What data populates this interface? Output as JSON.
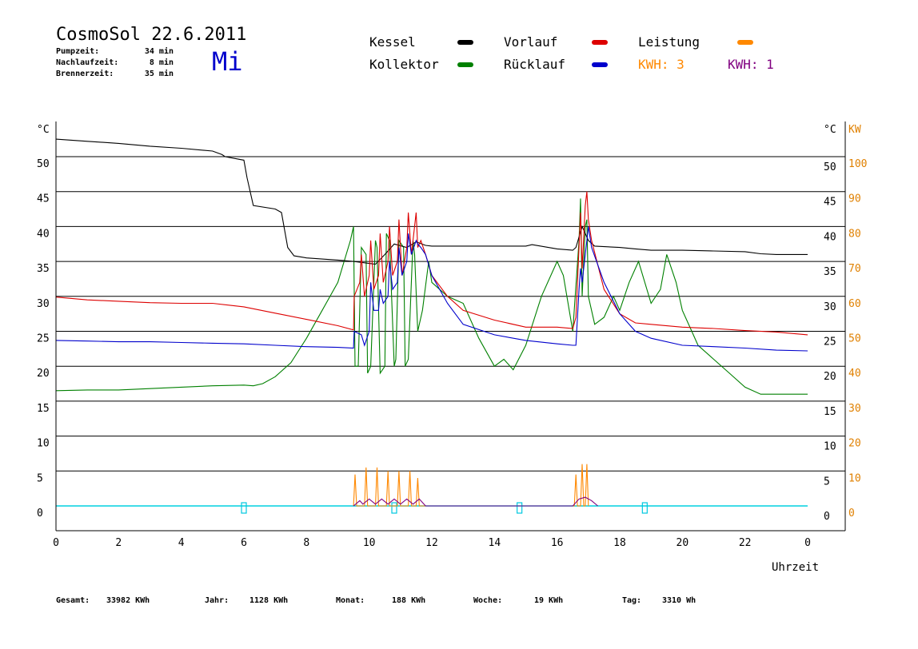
{
  "header": {
    "title": "CosmoSol 22.6.2011",
    "day": "Mi",
    "stats": [
      {
        "label": "Pumpzeit:",
        "value": "34 min"
      },
      {
        "label": "Nachlaufzeit:",
        "value": "8 min"
      },
      {
        "label": "Brennerzeit:",
        "value": "35 min"
      }
    ]
  },
  "legend": [
    {
      "label": "Kessel",
      "color": "#000000"
    },
    {
      "label": "Vorlauf",
      "color": "#dd0000"
    },
    {
      "label": "Leistung",
      "color": "#ff8800"
    },
    {
      "label": "Kollektor",
      "color": "#008000"
    },
    {
      "label": "Rücklauf",
      "color": "#0000cc"
    },
    {
      "label": "KWH: 3",
      "color": "#ff8800"
    },
    {
      "label": "KWH: 1",
      "color": "#800080"
    }
  ],
  "chart_data": {
    "type": "line",
    "xlabel": "Uhrzeit",
    "ylabel_left": "°C",
    "ylabel_right_1": "°C",
    "ylabel_right_2": "KW",
    "xlim": [
      0,
      24
    ],
    "ylim": [
      -3.5,
      55
    ],
    "x_ticks": [
      "0",
      "2",
      "4",
      "6",
      "8",
      "10",
      "12",
      "14",
      "16",
      "18",
      "20",
      "22",
      "0"
    ],
    "y_ticks": [
      0,
      5,
      10,
      15,
      20,
      25,
      30,
      35,
      40,
      45,
      50
    ],
    "kw_ticks": [
      0,
      10,
      20,
      30,
      40,
      50,
      60,
      70,
      80,
      90,
      100
    ],
    "grid": "horizontal",
    "series": [
      {
        "name": "Kessel",
        "color": "#000000",
        "x": [
          0,
          1,
          2,
          3,
          4,
          5,
          5.3,
          5.4,
          6.0,
          6.1,
          6.3,
          7.0,
          7.2,
          7.4,
          7.6,
          8,
          9,
          9.5,
          10.2,
          10.5,
          10.8,
          11.2,
          11.5,
          11.8,
          12,
          13,
          14,
          15,
          15.2,
          16,
          16.5,
          16.6,
          16.8,
          17,
          17.2,
          18,
          18.5,
          19,
          20,
          21,
          22,
          22.5,
          23,
          24
        ],
        "y": [
          52.5,
          52.2,
          51.9,
          51.5,
          51.2,
          50.8,
          50.3,
          50,
          49.5,
          47,
          43,
          42.5,
          42,
          37,
          35.8,
          35.5,
          35.2,
          35,
          34.6,
          36,
          37.5,
          37,
          37.8,
          37.3,
          37.2,
          37.2,
          37.2,
          37.2,
          37.4,
          36.8,
          36.6,
          37,
          40,
          38,
          37.2,
          37,
          36.8,
          36.6,
          36.6,
          36.5,
          36.4,
          36.1,
          36.0,
          36.0
        ]
      },
      {
        "name": "Vorlauf",
        "color": "#dd0000",
        "x": [
          0,
          1,
          2,
          3,
          4,
          5,
          6,
          7,
          8,
          9,
          9.5,
          9.52,
          9.7,
          9.75,
          9.85,
          10,
          10.05,
          10.15,
          10.3,
          10.35,
          10.45,
          10.6,
          10.65,
          10.75,
          10.9,
          10.95,
          11.05,
          11.2,
          11.25,
          11.35,
          11.5,
          11.55,
          11.65,
          11.8,
          12,
          12.5,
          13,
          14,
          15,
          16,
          16.5,
          16.6,
          16.7,
          16.75,
          16.8,
          16.9,
          16.95,
          17.0,
          17.1,
          17.5,
          18,
          18.5,
          19,
          20,
          21,
          22,
          23,
          24
        ],
        "y": [
          29.9,
          29.5,
          29.3,
          29.1,
          29.0,
          29.0,
          28.5,
          27.6,
          26.7,
          25.8,
          25.2,
          30,
          32,
          36,
          30,
          33,
          38,
          31,
          33,
          39,
          32,
          35,
          40,
          33,
          35,
          41,
          33,
          37,
          42,
          36,
          42,
          37,
          38,
          36,
          33,
          30,
          28,
          26.6,
          25.6,
          25.6,
          25.4,
          27,
          37,
          42,
          34,
          43,
          45,
          41,
          38,
          31,
          27.5,
          26.2,
          26,
          25.6,
          25.4,
          25.1,
          24.9,
          24.5
        ]
      },
      {
        "name": "Rücklauf",
        "color": "#0000cc",
        "x": [
          0,
          1,
          2,
          3,
          4,
          5,
          6,
          7,
          8,
          9,
          9.5,
          9.52,
          9.75,
          9.85,
          10,
          10.05,
          10.15,
          10.3,
          10.35,
          10.45,
          10.6,
          10.65,
          10.75,
          10.9,
          10.95,
          11.05,
          11.2,
          11.25,
          11.35,
          11.5,
          11.55,
          11.65,
          11.8,
          12,
          12.5,
          13,
          14,
          15,
          16,
          16.5,
          16.6,
          16.7,
          16.75,
          16.8,
          16.95,
          17.0,
          17.1,
          17.5,
          18,
          18.5,
          19,
          20,
          21,
          22,
          23,
          24
        ],
        "y": [
          23.7,
          23.6,
          23.5,
          23.5,
          23.4,
          23.3,
          23.2,
          23,
          22.8,
          22.7,
          22.6,
          25,
          24.5,
          23,
          25,
          32,
          28,
          28,
          31,
          29,
          30,
          35,
          31,
          32,
          37,
          33,
          35,
          39,
          36,
          38,
          37.5,
          37,
          36,
          33,
          29,
          26,
          24.5,
          23.7,
          23.2,
          23.0,
          23.0,
          31,
          34,
          32,
          38,
          40,
          37,
          32,
          27.5,
          25,
          24,
          23,
          22.8,
          22.6,
          22.3,
          22.2
        ]
      },
      {
        "name": "Kollektor",
        "color": "#008000",
        "x": [
          0,
          1,
          2,
          3,
          4,
          5,
          6,
          6.3,
          6.6,
          7,
          7.5,
          8,
          8.5,
          9,
          9.2,
          9.4,
          9.5,
          9.55,
          9.65,
          9.75,
          9.9,
          9.95,
          10.05,
          10.2,
          10.25,
          10.35,
          10.5,
          10.55,
          10.65,
          10.8,
          10.85,
          10.95,
          11.1,
          11.15,
          11.25,
          11.4,
          11.45,
          11.55,
          11.7,
          11.9,
          12,
          12.5,
          13,
          13.5,
          14,
          14.3,
          14.6,
          15,
          15.5,
          16,
          16.2,
          16.5,
          16.7,
          16.75,
          16.8,
          16.9,
          16.95,
          17.0,
          17.2,
          17.5,
          17.8,
          18,
          18.3,
          18.6,
          19.0,
          19.3,
          19.5,
          19.8,
          20,
          20.3,
          20.5,
          21,
          21.5,
          22,
          22.5,
          23,
          24
        ],
        "y": [
          16.5,
          16.6,
          16.6,
          16.8,
          17,
          17.2,
          17.3,
          17.2,
          17.5,
          18.5,
          20.5,
          24,
          28,
          32,
          35,
          38,
          40,
          20,
          20,
          37,
          36,
          19,
          20,
          38,
          37,
          19,
          20,
          39,
          38,
          20,
          21,
          38,
          37,
          20,
          21,
          38,
          36,
          25,
          28,
          35,
          32,
          30,
          29,
          24,
          20,
          21,
          19.5,
          23,
          30,
          35,
          33,
          25,
          38,
          44,
          30,
          40,
          41,
          30,
          26,
          27,
          30,
          28,
          32,
          35,
          29,
          31,
          36,
          32,
          28,
          25,
          23,
          21,
          19,
          17,
          16,
          16,
          16
        ]
      }
    ],
    "kw_series": [
      {
        "name": "Leistung",
        "color": "#ff8800",
        "x": [
          9.5,
          9.55,
          9.6,
          9.85,
          9.9,
          9.95,
          10.2,
          10.25,
          10.3,
          10.55,
          10.6,
          10.65,
          10.9,
          10.95,
          11.0,
          11.25,
          11.3,
          11.35,
          11.5,
          11.55,
          11.6,
          16.55,
          16.6,
          16.65,
          16.75,
          16.8,
          16.85,
          16.9,
          16.95,
          17.0
        ],
        "y": [
          0,
          9,
          0,
          0,
          11,
          0,
          0,
          11,
          0,
          0,
          10,
          0,
          0,
          10,
          0,
          0,
          10,
          0,
          0,
          8,
          0,
          0,
          9,
          0,
          0,
          12,
          0,
          0,
          12,
          0
        ]
      },
      {
        "name": "KWH: 1",
        "color": "#800080",
        "x": [
          9.5,
          9.7,
          9.8,
          10.0,
          10.2,
          10.4,
          10.6,
          10.8,
          11.0,
          11.2,
          11.4,
          11.6,
          11.8,
          16.5,
          16.7,
          16.9,
          17.1,
          17.3
        ],
        "y": [
          0,
          1.5,
          0.5,
          2,
          0.5,
          2,
          0.5,
          2,
          0.5,
          2,
          0.5,
          2,
          0,
          0,
          2,
          2.5,
          1.5,
          0
        ]
      }
    ],
    "events": [
      6,
      10.8,
      14.8,
      18.8
    ]
  },
  "footer": [
    {
      "label": "Gesamt:",
      "value": "33982 KWh"
    },
    {
      "label": "Jahr:",
      "value": "1128 KWh"
    },
    {
      "label": "Monat:",
      "value": "188 KWh"
    },
    {
      "label": "Woche:",
      "value": "19 KWh"
    },
    {
      "label": "Tag:",
      "value": "3310 Wh"
    }
  ]
}
